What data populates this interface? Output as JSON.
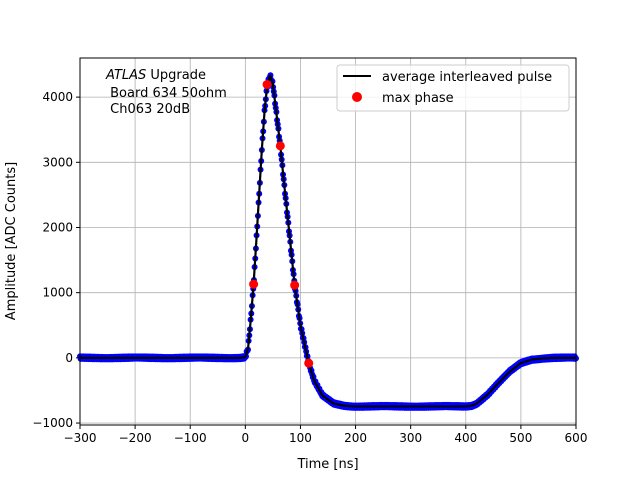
{
  "chart_data": {
    "type": "line",
    "xlabel": "Time [ns]",
    "ylabel": "Amplitude [ADC Counts]",
    "xlim": [
      -300,
      600
    ],
    "ylim": [
      -1030,
      4600
    ],
    "grid": true,
    "legend_placement": "top-right",
    "x_ticks": [
      -300,
      -200,
      -100,
      0,
      100,
      200,
      300,
      400,
      500,
      600
    ],
    "x_tick_labels": [
      "−300",
      "−200",
      "−100",
      "0",
      "100",
      "200",
      "300",
      "400",
      "500",
      "600"
    ],
    "y_ticks": [
      -1000,
      0,
      1000,
      2000,
      3000,
      4000
    ],
    "y_tick_labels": [
      "−1000",
      "0",
      "1000",
      "2000",
      "3000",
      "4000"
    ],
    "annotation": {
      "italic": "ATLAS",
      "line1_rest": " Upgrade",
      "line2": " Board 634 50ohm",
      "line3": " Ch063 20dB"
    },
    "series": [
      {
        "name": "average interleaved pulse",
        "kind": "line",
        "color": "#000000",
        "x": [
          -300,
          -10,
          0,
          5,
          10,
          15,
          20,
          25,
          30,
          35,
          40,
          45,
          50,
          55,
          63.5,
          70,
          80,
          89.5,
          100,
          115,
          125,
          140,
          160,
          180,
          200,
          300,
          400,
          410,
          420,
          440,
          460,
          480,
          500,
          520,
          540,
          560,
          600
        ],
        "y": [
          0,
          0,
          10,
          150,
          600,
          1130,
          1800,
          2500,
          3200,
          3800,
          4200,
          4330,
          4200,
          3850,
          3250,
          2700,
          1900,
          1115,
          500,
          -81,
          -350,
          -580,
          -700,
          -735,
          -745,
          -745,
          -745,
          -735,
          -700,
          -560,
          -380,
          -210,
          -80,
          -25,
          -8,
          0,
          0
        ]
      },
      {
        "kind": "samples",
        "color": "#0000ff"
      },
      {
        "name": "max phase",
        "kind": "scatter",
        "color": "#ff0000",
        "x": [
          15,
          39.4,
          63.5,
          89.5,
          115
        ],
        "y": [
          1130,
          4194,
          3252,
          1115,
          -81
        ]
      }
    ]
  }
}
